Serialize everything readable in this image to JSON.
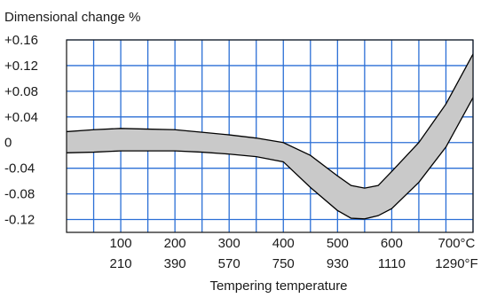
{
  "chart_data": {
    "type": "area",
    "title": "Dimensional change %",
    "xlabel": "Tempering temperature",
    "x_unit": "°C",
    "xlim": [
      0,
      750
    ],
    "ylim": [
      -0.14,
      0.16
    ],
    "grid": true,
    "x_tick_labels_c": [
      "100",
      "200",
      "300",
      "400",
      "500",
      "600",
      "700°C"
    ],
    "x_tick_labels_f": [
      "210",
      "390",
      "570",
      "750",
      "930",
      "1110",
      "1290°F"
    ],
    "y_tick_labels": [
      "+0.16",
      "+0.12",
      "+0.08",
      "+0.04",
      "0",
      "-0.04",
      "-0.08",
      "-0.12"
    ],
    "y_tick_values": [
      0.16,
      0.12,
      0.08,
      0.04,
      0,
      -0.04,
      -0.08,
      -0.12
    ],
    "x_gridlines": [
      50,
      100,
      150,
      200,
      250,
      300,
      350,
      400,
      450,
      500,
      550,
      600,
      650,
      700,
      750
    ],
    "y_gridlines": [
      0.16,
      0.12,
      0.08,
      0.04,
      0.0,
      -0.04,
      -0.08,
      -0.12
    ],
    "series": [
      {
        "role": "upper bound",
        "x": [
          0,
          50,
          100,
          150,
          200,
          250,
          300,
          350,
          400,
          450,
          500,
          525,
          550,
          575,
          600,
          650,
          700,
          750
        ],
        "values": [
          0.017,
          0.02,
          0.022,
          0.021,
          0.02,
          0.016,
          0.012,
          0.007,
          0.0,
          -0.02,
          -0.052,
          -0.067,
          -0.071,
          -0.067,
          -0.045,
          0.0,
          0.06,
          0.138
        ]
      },
      {
        "role": "lower bound",
        "x": [
          0,
          50,
          100,
          150,
          200,
          250,
          300,
          350,
          400,
          450,
          500,
          525,
          550,
          575,
          600,
          650,
          700,
          750
        ],
        "values": [
          -0.016,
          -0.015,
          -0.013,
          -0.013,
          -0.013,
          -0.015,
          -0.018,
          -0.022,
          -0.03,
          -0.07,
          -0.106,
          -0.118,
          -0.119,
          -0.114,
          -0.103,
          -0.062,
          -0.007,
          0.07
        ]
      }
    ],
    "colors": {
      "band_fill": "#c9c9c9",
      "band_edge": "#000000",
      "grid": "#2b6fd6",
      "frame": "#111111"
    }
  }
}
